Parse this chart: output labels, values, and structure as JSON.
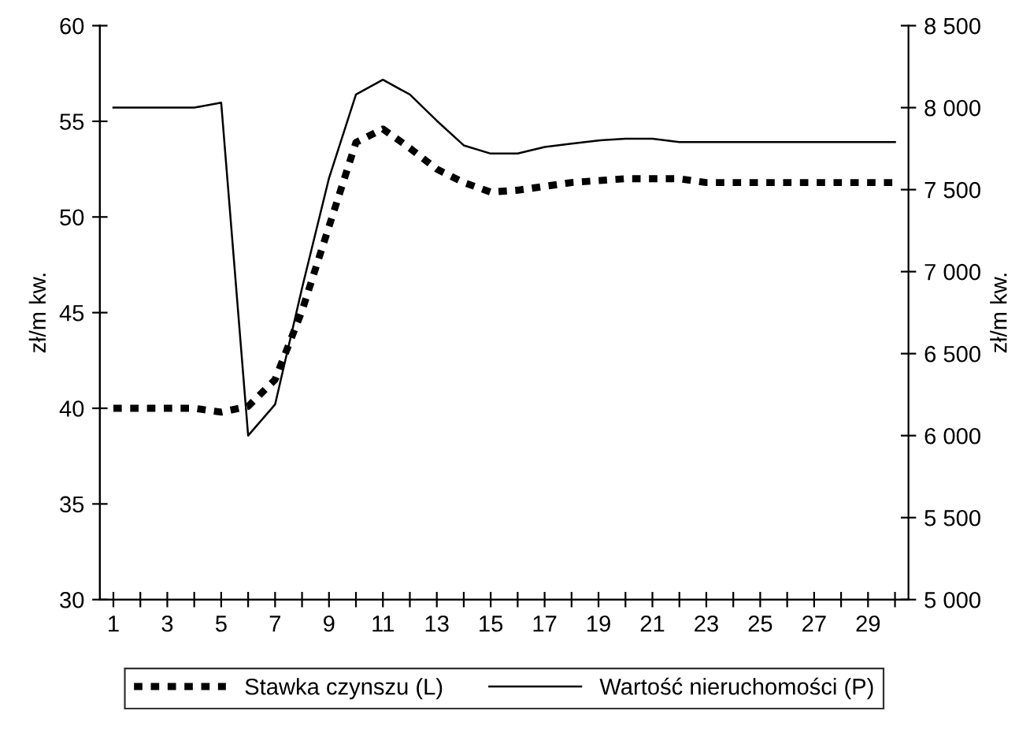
{
  "chart_data": {
    "type": "line",
    "categories": [
      "1",
      null,
      "3",
      null,
      "5",
      null,
      "7",
      null,
      "9",
      null,
      "11",
      null,
      "13",
      null,
      "15",
      null,
      "17",
      null,
      "19",
      null,
      "21",
      null,
      "23",
      null,
      "25",
      null,
      "27",
      null,
      "29",
      null
    ],
    "series": [
      {
        "name": "Stawka czynszu (L)",
        "color": "#000000",
        "line_style": "dashed",
        "values": [
          40,
          40,
          40,
          40,
          39.8,
          40.1,
          41.5,
          45.1,
          49.5,
          53.9,
          54.6,
          53.6,
          52.5,
          51.8,
          51.3,
          51.4,
          51.6,
          51.8,
          51.9,
          52.0,
          52.0,
          52.0,
          51.8,
          51.8,
          51.8,
          51.8,
          51.8,
          51.8,
          51.8,
          51.8
        ]
      },
      {
        "name": "Wartość nieruchomości (P)",
        "color": "#000000",
        "line_style": "solid",
        "axis": "y2",
        "values": [
          8000,
          8000,
          8000,
          8000,
          8030,
          6000,
          6190,
          6900,
          7570,
          8080,
          8170,
          8080,
          7920,
          7770,
          7720,
          7720,
          7760,
          7780,
          7800,
          7810,
          7810,
          7790,
          7790,
          7790,
          7790,
          7790,
          7790,
          7790,
          7790,
          7790
        ]
      }
    ],
    "ylabel": "zł/m kw.",
    "y2label": "zł/m kw.",
    "ylim": [
      30,
      60
    ],
    "yticks": [
      30,
      35,
      40,
      45,
      50,
      55,
      60
    ],
    "y2lim": [
      5000,
      8500
    ],
    "y2ticks": [
      {
        "value": 5000,
        "label": "5 000"
      },
      {
        "value": 5500,
        "label": "5 500"
      },
      {
        "value": 6000,
        "label": "6 000"
      },
      {
        "value": 6500,
        "label": "6 500"
      },
      {
        "value": 7000,
        "label": "7 000"
      },
      {
        "value": 7500,
        "label": "7 500"
      },
      {
        "value": 8000,
        "label": "8 000"
      },
      {
        "value": 8500,
        "label": "8 500"
      }
    ],
    "grid": false,
    "legend": "bottom",
    "marker": "none"
  }
}
